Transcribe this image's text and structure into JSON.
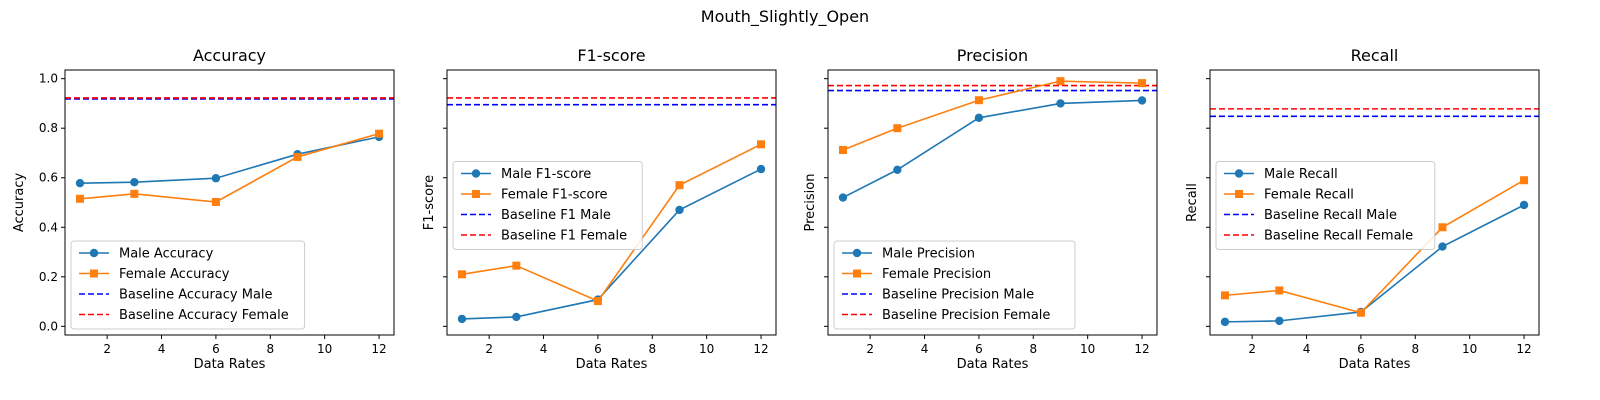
{
  "suptitle": "Mouth_Slightly_Open",
  "chart_data": [
    {
      "type": "line",
      "title": "Accuracy",
      "xlabel": "Data Rates",
      "ylabel": "Accuracy",
      "x": [
        1,
        3,
        6,
        9,
        12
      ],
      "xlim": [
        0.45,
        12.55
      ],
      "ylim": [
        -0.035,
        1.035
      ],
      "xticks": [
        2,
        4,
        6,
        8,
        10,
        12
      ],
      "yticks": [
        0.0,
        0.2,
        0.4,
        0.6,
        0.8,
        1.0
      ],
      "ytick_labels_visible": true,
      "grid": false,
      "legend_placement": "lower-left",
      "series": [
        {
          "name": "Male Accuracy",
          "values": [
            0.578,
            0.582,
            0.598,
            0.695,
            0.765
          ],
          "color": "#1f77b4",
          "marker": "circle",
          "style": "solid"
        },
        {
          "name": "Female Accuracy",
          "values": [
            0.515,
            0.535,
            0.502,
            0.684,
            0.778
          ],
          "color": "#ff7f0e",
          "marker": "square",
          "style": "solid"
        }
      ],
      "baselines": [
        {
          "name": "Baseline Accuracy Male",
          "value": 0.918,
          "color": "#0000ff"
        },
        {
          "name": "Baseline Accuracy Female",
          "value": 0.922,
          "color": "#ff0000"
        }
      ]
    },
    {
      "type": "line",
      "title": "F1-score",
      "xlabel": "Data Rates",
      "ylabel": "F1-score",
      "x": [
        1,
        3,
        6,
        9,
        12
      ],
      "xlim": [
        0.45,
        12.55
      ],
      "ylim": [
        -0.035,
        1.035
      ],
      "xticks": [
        2,
        4,
        6,
        8,
        10,
        12
      ],
      "yticks": [
        0.0,
        0.2,
        0.4,
        0.6,
        0.8,
        1.0
      ],
      "ytick_labels_visible": false,
      "grid": false,
      "legend_placement": "center-left",
      "series": [
        {
          "name": "Male F1-score",
          "values": [
            0.03,
            0.038,
            0.108,
            0.47,
            0.635
          ],
          "color": "#1f77b4",
          "marker": "circle",
          "style": "solid"
        },
        {
          "name": "Female F1-score",
          "values": [
            0.21,
            0.245,
            0.102,
            0.57,
            0.735
          ],
          "color": "#ff7f0e",
          "marker": "square",
          "style": "solid"
        }
      ],
      "baselines": [
        {
          "name": "Baseline F1 Male",
          "value": 0.895,
          "color": "#0000ff"
        },
        {
          "name": "Baseline F1 Female",
          "value": 0.922,
          "color": "#ff0000"
        }
      ]
    },
    {
      "type": "line",
      "title": "Precision",
      "xlabel": "Data Rates",
      "ylabel": "Precision",
      "x": [
        1,
        3,
        6,
        9,
        12
      ],
      "xlim": [
        0.45,
        12.55
      ],
      "ylim": [
        -0.035,
        1.035
      ],
      "xticks": [
        2,
        4,
        6,
        8,
        10,
        12
      ],
      "yticks": [
        0.0,
        0.2,
        0.4,
        0.6,
        0.8,
        1.0
      ],
      "ytick_labels_visible": false,
      "grid": false,
      "legend_placement": "lower-left",
      "series": [
        {
          "name": "Male Precision",
          "values": [
            0.52,
            0.632,
            0.842,
            0.9,
            0.912
          ],
          "color": "#1f77b4",
          "marker": "circle",
          "style": "solid"
        },
        {
          "name": "Female Precision",
          "values": [
            0.712,
            0.8,
            0.913,
            0.99,
            0.982
          ],
          "color": "#ff7f0e",
          "marker": "square",
          "style": "solid"
        }
      ],
      "baselines": [
        {
          "name": "Baseline Precision Male",
          "value": 0.952,
          "color": "#0000ff"
        },
        {
          "name": "Baseline Precision Female",
          "value": 0.972,
          "color": "#ff0000"
        }
      ]
    },
    {
      "type": "line",
      "title": "Recall",
      "xlabel": "Data Rates",
      "ylabel": "Recall",
      "x": [
        1,
        3,
        6,
        9,
        12
      ],
      "xlim": [
        0.45,
        12.55
      ],
      "ylim": [
        -0.035,
        1.035
      ],
      "xticks": [
        2,
        4,
        6,
        8,
        10,
        12
      ],
      "yticks": [
        0.0,
        0.2,
        0.4,
        0.6,
        0.8,
        1.0
      ],
      "ytick_labels_visible": false,
      "grid": false,
      "legend_placement": "center-left",
      "series": [
        {
          "name": "Male Recall",
          "values": [
            0.018,
            0.022,
            0.058,
            0.322,
            0.49
          ],
          "color": "#1f77b4",
          "marker": "circle",
          "style": "solid"
        },
        {
          "name": "Female Recall",
          "values": [
            0.125,
            0.145,
            0.055,
            0.4,
            0.59
          ],
          "color": "#ff7f0e",
          "marker": "square",
          "style": "solid"
        }
      ],
      "baselines": [
        {
          "name": "Baseline Recall Male",
          "value": 0.848,
          "color": "#0000ff"
        },
        {
          "name": "Baseline Recall Female",
          "value": 0.878,
          "color": "#ff0000"
        }
      ]
    }
  ]
}
